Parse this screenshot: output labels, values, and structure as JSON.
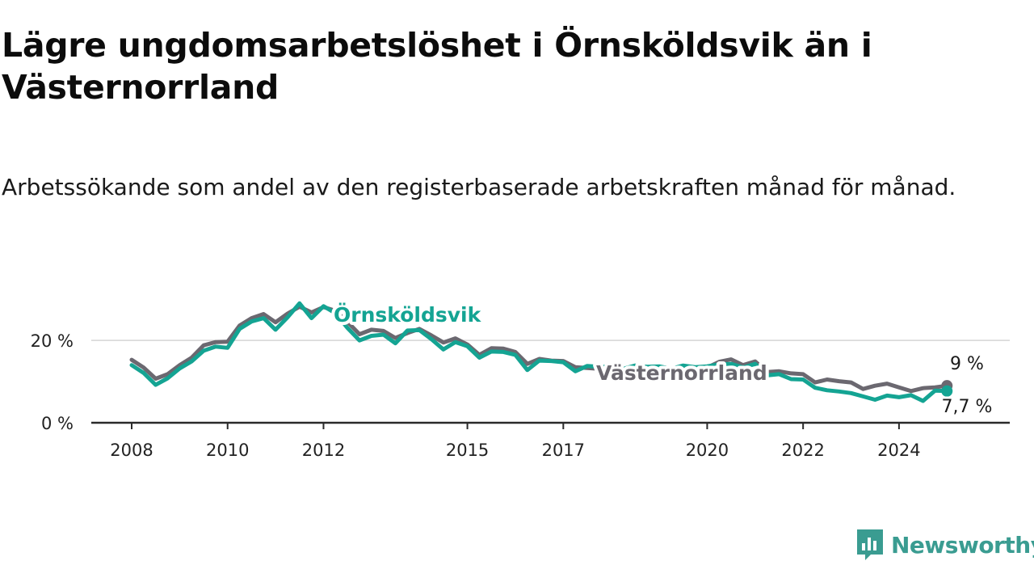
{
  "title": "Lägre ungdomsarbetslöshet i Örnsköldsvik än i Västernorrland",
  "subtitle": "Arbetssökande som andel av den registerbaserade arbetskraften månad för månad.",
  "brand": {
    "name": "Newsworthy",
    "color": "#3a9c91",
    "icon": "bar-chart-speech-bubble-icon"
  },
  "chart_data": {
    "type": "line",
    "x_range": [
      "2008-01",
      "2025-06"
    ],
    "ylim": [
      0,
      32
    ],
    "y_ticks": [
      {
        "value": 0,
        "label": "0 %"
      },
      {
        "value": 20,
        "label": "20 %"
      }
    ],
    "x_ticks": [
      {
        "value": "2008-01",
        "label": "2008"
      },
      {
        "value": "2010-01",
        "label": "2010"
      },
      {
        "value": "2012-01",
        "label": "2012"
      },
      {
        "value": "2015-01",
        "label": "2015"
      },
      {
        "value": "2017-01",
        "label": "2017"
      },
      {
        "value": "2020-01",
        "label": "2020"
      },
      {
        "value": "2022-01",
        "label": "2022"
      },
      {
        "value": "2024-01",
        "label": "2024"
      }
    ],
    "grid": "horizontal",
    "legend": "inline labels",
    "series": [
      {
        "name": "Västernorrland",
        "color": "#6b6870",
        "end_label": "9 %",
        "points": [
          [
            "2008-01",
            15.3
          ],
          [
            "2008-04",
            13.4
          ],
          [
            "2008-07",
            10.7
          ],
          [
            "2008-10",
            11.8
          ],
          [
            "2009-01",
            14.0
          ],
          [
            "2009-04",
            15.8
          ],
          [
            "2009-07",
            18.8
          ],
          [
            "2009-10",
            19.6
          ],
          [
            "2010-01",
            19.7
          ],
          [
            "2010-04",
            23.6
          ],
          [
            "2010-07",
            25.4
          ],
          [
            "2010-10",
            26.4
          ],
          [
            "2011-01",
            24.4
          ],
          [
            "2011-04",
            26.5
          ],
          [
            "2011-07",
            28.2
          ],
          [
            "2011-10",
            26.8
          ],
          [
            "2012-01",
            28.1
          ],
          [
            "2012-04",
            27.2
          ],
          [
            "2012-07",
            24.5
          ],
          [
            "2012-10",
            21.5
          ],
          [
            "2013-01",
            22.6
          ],
          [
            "2013-04",
            22.3
          ],
          [
            "2013-07",
            20.6
          ],
          [
            "2013-10",
            21.8
          ],
          [
            "2014-01",
            22.8
          ],
          [
            "2014-04",
            21.2
          ],
          [
            "2014-07",
            19.5
          ],
          [
            "2014-10",
            20.5
          ],
          [
            "2015-01",
            19.0
          ],
          [
            "2015-04",
            16.5
          ],
          [
            "2015-07",
            18.1
          ],
          [
            "2015-10",
            18.0
          ],
          [
            "2016-01",
            17.2
          ],
          [
            "2016-04",
            14.3
          ],
          [
            "2016-07",
            15.5
          ],
          [
            "2016-10",
            15.1
          ],
          [
            "2017-01",
            15.0
          ],
          [
            "2017-04",
            13.5
          ],
          [
            "2017-07",
            13.3
          ],
          [
            "2017-10",
            13.1
          ],
          [
            "2018-01",
            13.6
          ],
          [
            "2018-04",
            13.0
          ],
          [
            "2018-07",
            13.4
          ],
          [
            "2018-10",
            13.3
          ],
          [
            "2019-01",
            13.6
          ],
          [
            "2019-04",
            13.2
          ],
          [
            "2019-07",
            13.5
          ],
          [
            "2019-10",
            13.3
          ],
          [
            "2020-01",
            13.4
          ],
          [
            "2020-04",
            14.8
          ],
          [
            "2020-07",
            15.4
          ],
          [
            "2020-10",
            14.0
          ],
          [
            "2021-01",
            14.9
          ],
          [
            "2021-04",
            12.3
          ],
          [
            "2021-07",
            12.5
          ],
          [
            "2021-10",
            12.0
          ],
          [
            "2022-01",
            11.8
          ],
          [
            "2022-04",
            9.8
          ],
          [
            "2022-07",
            10.5
          ],
          [
            "2022-10",
            10.1
          ],
          [
            "2023-01",
            9.8
          ],
          [
            "2023-04",
            8.2
          ],
          [
            "2023-07",
            9.0
          ],
          [
            "2023-10",
            9.5
          ],
          [
            "2024-01",
            8.6
          ],
          [
            "2024-04",
            7.7
          ],
          [
            "2024-07",
            8.4
          ],
          [
            "2024-10",
            8.6
          ],
          [
            "2025-01",
            9.0
          ]
        ]
      },
      {
        "name": "Örnsköldsvik",
        "color": "#14a493",
        "end_label": "7,7 %",
        "points": [
          [
            "2008-01",
            14.0
          ],
          [
            "2008-04",
            12.1
          ],
          [
            "2008-07",
            9.2
          ],
          [
            "2008-10",
            10.8
          ],
          [
            "2009-01",
            13.2
          ],
          [
            "2009-04",
            14.9
          ],
          [
            "2009-07",
            17.5
          ],
          [
            "2009-10",
            18.5
          ],
          [
            "2010-01",
            18.2
          ],
          [
            "2010-04",
            22.8
          ],
          [
            "2010-07",
            24.6
          ],
          [
            "2010-10",
            25.4
          ],
          [
            "2011-01",
            22.6
          ],
          [
            "2011-04",
            25.6
          ],
          [
            "2011-07",
            29.0
          ],
          [
            "2011-10",
            25.4
          ],
          [
            "2012-01",
            28.3
          ],
          [
            "2012-04",
            26.6
          ],
          [
            "2012-07",
            23.0
          ],
          [
            "2012-10",
            20.0
          ],
          [
            "2013-01",
            21.1
          ],
          [
            "2013-04",
            21.4
          ],
          [
            "2013-07",
            19.3
          ],
          [
            "2013-10",
            22.4
          ],
          [
            "2014-01",
            22.5
          ],
          [
            "2014-04",
            20.3
          ],
          [
            "2014-07",
            17.8
          ],
          [
            "2014-10",
            19.6
          ],
          [
            "2015-01",
            18.6
          ],
          [
            "2015-04",
            15.8
          ],
          [
            "2015-07",
            17.3
          ],
          [
            "2015-10",
            17.2
          ],
          [
            "2016-01",
            16.5
          ],
          [
            "2016-04",
            12.8
          ],
          [
            "2016-07",
            15.1
          ],
          [
            "2016-10",
            15.0
          ],
          [
            "2017-01",
            14.7
          ],
          [
            "2017-04",
            12.5
          ],
          [
            "2017-07",
            13.8
          ],
          [
            "2017-10",
            13.6
          ],
          [
            "2018-01",
            13.6
          ],
          [
            "2018-04",
            13.1
          ],
          [
            "2018-07",
            13.9
          ],
          [
            "2018-10",
            13.6
          ],
          [
            "2019-01",
            13.7
          ],
          [
            "2019-04",
            13.1
          ],
          [
            "2019-07",
            13.9
          ],
          [
            "2019-10",
            13.5
          ],
          [
            "2020-01",
            13.7
          ],
          [
            "2020-04",
            14.2
          ],
          [
            "2020-07",
            14.3
          ],
          [
            "2020-10",
            13.4
          ],
          [
            "2021-01",
            14.3
          ],
          [
            "2021-04",
            11.5
          ],
          [
            "2021-07",
            11.8
          ],
          [
            "2021-10",
            10.6
          ],
          [
            "2022-01",
            10.5
          ],
          [
            "2022-04",
            8.5
          ],
          [
            "2022-07",
            7.9
          ],
          [
            "2022-10",
            7.6
          ],
          [
            "2023-01",
            7.2
          ],
          [
            "2023-04",
            6.4
          ],
          [
            "2023-07",
            5.6
          ],
          [
            "2023-10",
            6.6
          ],
          [
            "2024-01",
            6.2
          ],
          [
            "2024-04",
            6.7
          ],
          [
            "2024-07",
            5.3
          ],
          [
            "2024-10",
            7.8
          ],
          [
            "2025-01",
            7.7
          ]
        ]
      }
    ]
  }
}
